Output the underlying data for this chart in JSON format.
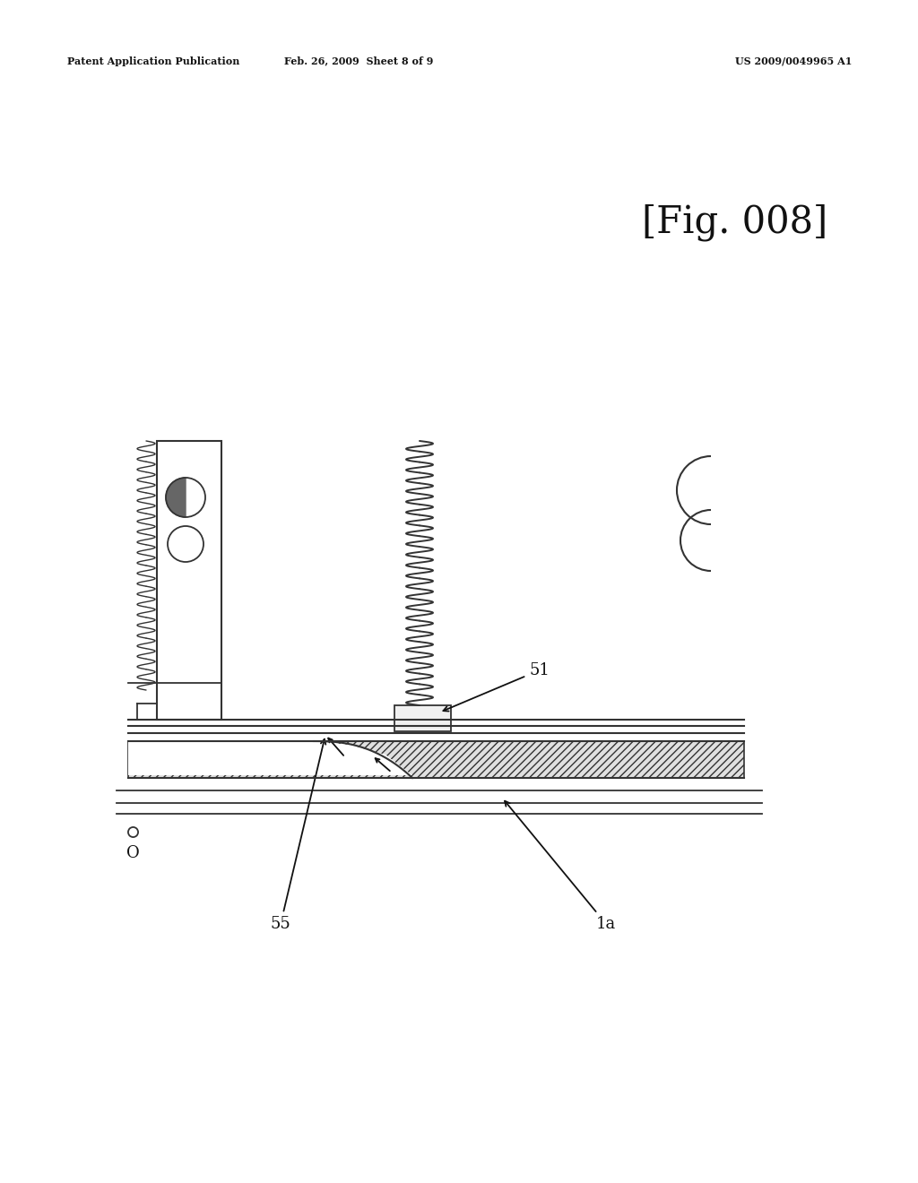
{
  "bg_color": "#ffffff",
  "header_left": "Patent Application Publication",
  "header_mid": "Feb. 26, 2009  Sheet 8 of 9",
  "header_right": "US 2009/0049965 A1",
  "fig_label": "[Fig. 008]",
  "label_51": "51",
  "label_55": "55",
  "label_1a": "1a",
  "label_o": "O",
  "line_color": "#333333",
  "hatch_color": "#aaaaaa",
  "text_color": "#111111"
}
